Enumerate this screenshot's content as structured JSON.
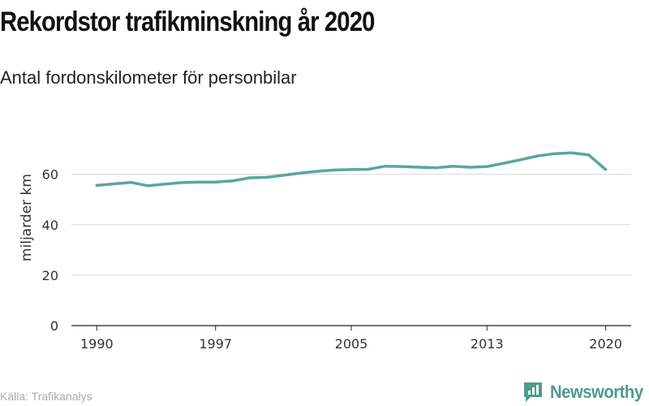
{
  "header": {
    "title": "Rekordstor trafikminskning år 2020",
    "subtitle": "Antal fordonskilometer för personbilar"
  },
  "footer": {
    "source": "Källa: Trafikanalys",
    "brand_name": "Newsworthy"
  },
  "colors": {
    "line": "#5aa79a",
    "brand": "#4d9b8f",
    "grid": "#d9d9d9"
  },
  "chart_data": {
    "type": "line",
    "title": "Rekordstor trafikminskning år 2020",
    "subtitle": "Antal fordonskilometer för personbilar",
    "ylabel": "miljarder km",
    "xlabel": "",
    "x": [
      1990,
      1991,
      1992,
      1993,
      1994,
      1995,
      1996,
      1997,
      1998,
      1999,
      2000,
      2001,
      2002,
      2003,
      2004,
      2005,
      2006,
      2007,
      2008,
      2009,
      2010,
      2011,
      2012,
      2013,
      2014,
      2015,
      2016,
      2017,
      2018,
      2019,
      2020
    ],
    "series": [
      {
        "values": [
          55.6,
          56.2,
          56.8,
          55.5,
          56.1,
          56.7,
          56.9,
          56.9,
          57.4,
          58.6,
          58.8,
          59.6,
          60.5,
          61.2,
          61.7,
          61.9,
          62.0,
          63.2,
          63.1,
          62.8,
          62.6,
          63.2,
          62.8,
          63.1,
          64.4,
          65.8,
          67.3,
          68.2,
          68.5,
          67.7,
          61.9
        ]
      }
    ],
    "xticks": [
      1990,
      1997,
      2005,
      2013,
      2020
    ],
    "yticks": [
      0,
      20,
      40,
      60
    ],
    "xlim": [
      1988.5,
      2021.5
    ],
    "ylim": [
      0,
      76
    ],
    "grid": "horizontal"
  }
}
